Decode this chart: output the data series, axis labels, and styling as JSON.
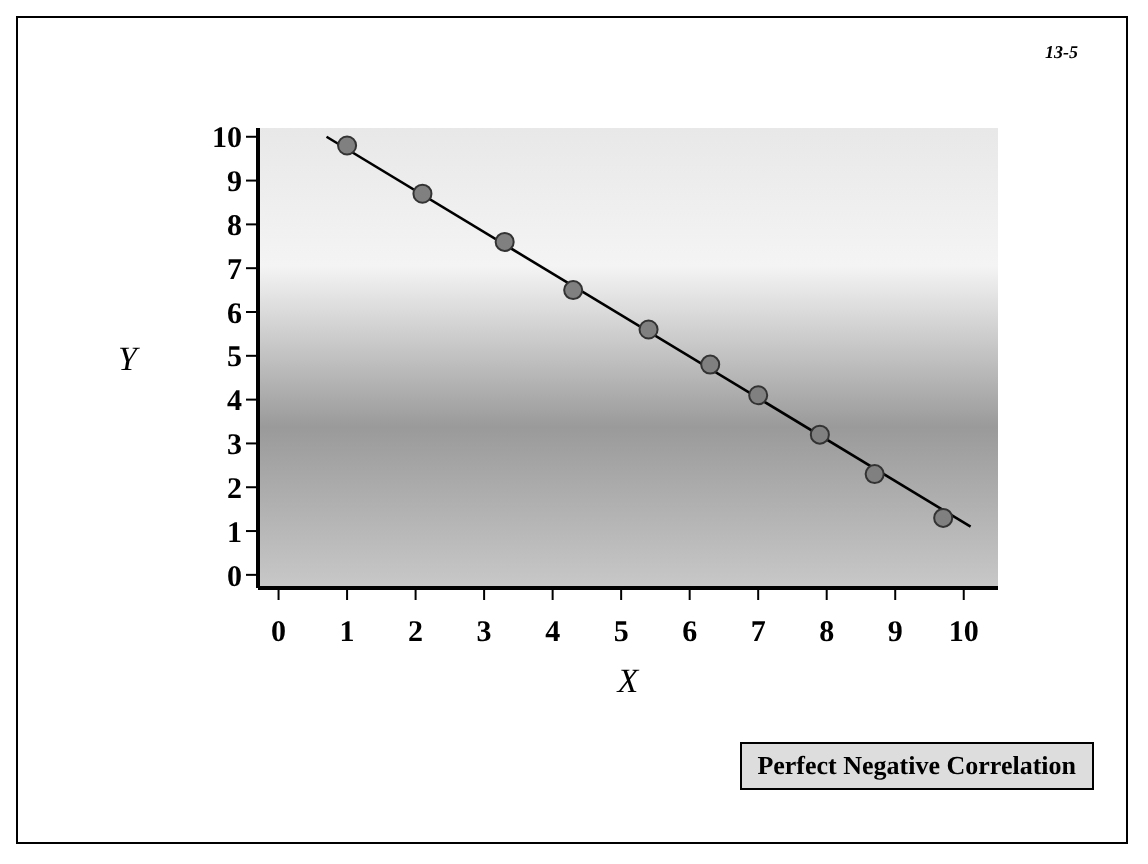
{
  "chart_data": {
    "type": "scatter",
    "xlabel": "X",
    "ylabel": "Y",
    "annotations": [
      "13-5",
      "Perfect Negative Correlation"
    ],
    "xlim": [
      -0.3,
      10.5
    ],
    "ylim": [
      -0.3,
      10.2
    ],
    "xticks": [
      0,
      1,
      2,
      3,
      4,
      5,
      6,
      7,
      8,
      9,
      10
    ],
    "yticks": [
      0,
      1,
      2,
      3,
      4,
      5,
      6,
      7,
      8,
      9,
      10
    ],
    "grid": false,
    "legend": false,
    "series": [
      {
        "type": "scatter",
        "color": "#808080",
        "marker": "circle",
        "x": [
          1,
          2.1,
          3.3,
          4.3,
          5.4,
          6.3,
          7,
          7.9,
          8.7,
          9.7
        ],
        "values": [
          9.8,
          8.7,
          7.6,
          6.5,
          5.6,
          4.8,
          4.1,
          3.2,
          2.3,
          1.3
        ]
      },
      {
        "type": "line",
        "color": "#000000",
        "marker": "none",
        "line_style": "solid",
        "x": [
          0.7,
          10.1
        ],
        "values": [
          10,
          1.1
        ]
      }
    ]
  }
}
